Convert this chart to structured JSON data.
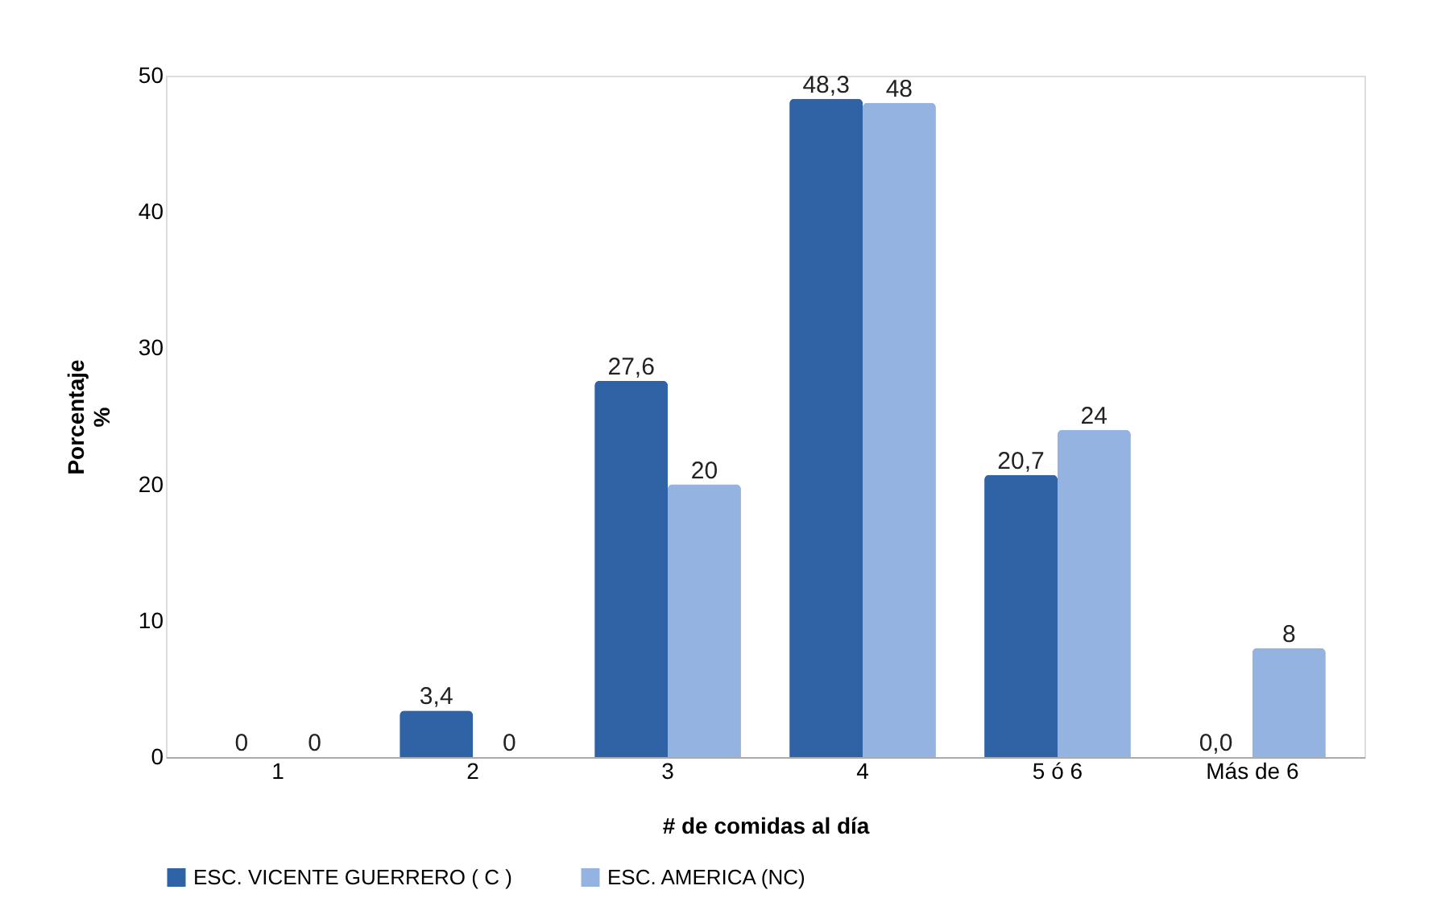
{
  "chart_data": {
    "type": "bar",
    "xlabel": "# de comidas al día",
    "ylabel": "Porcentaje\n%",
    "categories": [
      "1",
      "2",
      "3",
      "4",
      "5 ó 6",
      "Más de 6"
    ],
    "series": [
      {
        "name": "ESC. VICENTE GUERRERO ( C )",
        "color": "#2f63a6",
        "values": [
          0,
          3.4,
          27.6,
          48.3,
          20.7,
          0.0
        ],
        "value_labels": [
          "0",
          "3,4",
          "27,6",
          "48,3",
          "20,7",
          "0,0"
        ]
      },
      {
        "name": "ESC. AMERICA (NC)",
        "color": "#95b3e0",
        "values": [
          0,
          0,
          20,
          48,
          24,
          8
        ],
        "value_labels": [
          "0",
          "0",
          "20",
          "48",
          "24",
          "8"
        ]
      }
    ],
    "ylim": [
      0,
      50
    ],
    "yticks": [
      0,
      10,
      20,
      30,
      40,
      50
    ],
    "grid": false,
    "legend": "bottom"
  }
}
